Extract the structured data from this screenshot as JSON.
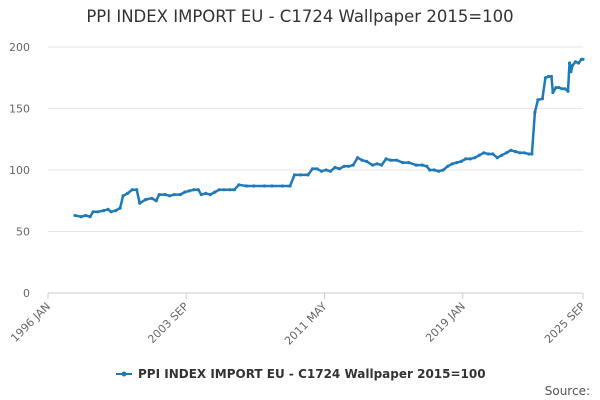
{
  "chart_data": {
    "type": "line",
    "title": "PPI INDEX IMPORT EU - C1724 Wallpaper 2015=100",
    "xlabel": "",
    "ylabel": "",
    "ylim": [
      0,
      200
    ],
    "y_ticks": [
      0,
      50,
      100,
      150,
      200
    ],
    "x_range": [
      "1996-01",
      "2025-09"
    ],
    "x_ticks": [
      "1996 JAN",
      "2003 SEP",
      "2011 MAY",
      "2019 JAN",
      "2025 SEP"
    ],
    "grid": "horizontal",
    "legend_position": "bottom-center",
    "color": "#1f7ab8",
    "series": [
      {
        "name": "PPI INDEX IMPORT EU - C1724 Wallpaper 2015=100",
        "points": [
          [
            "1997-07",
            63
          ],
          [
            "1997-11",
            62
          ],
          [
            "1998-02",
            63
          ],
          [
            "1998-05",
            62
          ],
          [
            "1998-07",
            66
          ],
          [
            "1998-10",
            66
          ],
          [
            "1999-02",
            67
          ],
          [
            "1999-05",
            68
          ],
          [
            "1999-07",
            66
          ],
          [
            "1999-10",
            67
          ],
          [
            "2000-01",
            69
          ],
          [
            "2000-03",
            79
          ],
          [
            "2000-06",
            81
          ],
          [
            "2000-09",
            84
          ],
          [
            "2000-12",
            84
          ],
          [
            "2001-02",
            73
          ],
          [
            "2001-06",
            76
          ],
          [
            "2001-10",
            77
          ],
          [
            "2002-01",
            75
          ],
          [
            "2002-03",
            80
          ],
          [
            "2002-07",
            80
          ],
          [
            "2002-10",
            79
          ],
          [
            "2003-01",
            80
          ],
          [
            "2003-05",
            80
          ],
          [
            "2003-08",
            82
          ],
          [
            "2003-11",
            83
          ],
          [
            "2004-02",
            84
          ],
          [
            "2004-05",
            84
          ],
          [
            "2004-07",
            80
          ],
          [
            "2004-10",
            81
          ],
          [
            "2005-01",
            80
          ],
          [
            "2005-04",
            82
          ],
          [
            "2005-07",
            84
          ],
          [
            "2005-10",
            84
          ],
          [
            "2006-02",
            84
          ],
          [
            "2006-05",
            84
          ],
          [
            "2006-08",
            88
          ],
          [
            "2007-01",
            87
          ],
          [
            "2007-06",
            87
          ],
          [
            "2008-01",
            87
          ],
          [
            "2008-06",
            87
          ],
          [
            "2009-01",
            87
          ],
          [
            "2009-06",
            87
          ],
          [
            "2009-09",
            96
          ],
          [
            "2010-01",
            96
          ],
          [
            "2010-06",
            96
          ],
          [
            "2010-09",
            101
          ],
          [
            "2010-12",
            101
          ],
          [
            "2011-03",
            99
          ],
          [
            "2011-06",
            100
          ],
          [
            "2011-09",
            99
          ],
          [
            "2011-12",
            102
          ],
          [
            "2012-03",
            101
          ],
          [
            "2012-06",
            103
          ],
          [
            "2012-09",
            103
          ],
          [
            "2012-12",
            104
          ],
          [
            "2013-03",
            110
          ],
          [
            "2013-06",
            108
          ],
          [
            "2013-09",
            107
          ],
          [
            "2014-01",
            104
          ],
          [
            "2014-04",
            105
          ],
          [
            "2014-07",
            104
          ],
          [
            "2014-10",
            109
          ],
          [
            "2015-01",
            108
          ],
          [
            "2015-05",
            108
          ],
          [
            "2015-09",
            106
          ],
          [
            "2016-01",
            106
          ],
          [
            "2016-06",
            104
          ],
          [
            "2016-10",
            104
          ],
          [
            "2017-01",
            103
          ],
          [
            "2017-03",
            100
          ],
          [
            "2017-06",
            100
          ],
          [
            "2017-09",
            99
          ],
          [
            "2017-12",
            100
          ],
          [
            "2018-03",
            103
          ],
          [
            "2018-06",
            105
          ],
          [
            "2018-09",
            106
          ],
          [
            "2018-12",
            107
          ],
          [
            "2019-03",
            109
          ],
          [
            "2019-06",
            109
          ],
          [
            "2019-09",
            110
          ],
          [
            "2019-12",
            112
          ],
          [
            "2020-03",
            114
          ],
          [
            "2020-06",
            113
          ],
          [
            "2020-09",
            113
          ],
          [
            "2020-12",
            110
          ],
          [
            "2021-03",
            112
          ],
          [
            "2021-06",
            114
          ],
          [
            "2021-09",
            116
          ],
          [
            "2021-12",
            115
          ],
          [
            "2022-03",
            114
          ],
          [
            "2022-06",
            114
          ],
          [
            "2022-09",
            113
          ],
          [
            "2022-11",
            113
          ],
          [
            "2023-01",
            147
          ],
          [
            "2023-03",
            157
          ],
          [
            "2023-06",
            158
          ],
          [
            "2023-08",
            175
          ],
          [
            "2023-10",
            176
          ],
          [
            "2023-12",
            176
          ],
          [
            "2024-01",
            163
          ],
          [
            "2024-03",
            167
          ],
          [
            "2024-05",
            167
          ],
          [
            "2024-07",
            166
          ],
          [
            "2024-09",
            166
          ],
          [
            "2024-11",
            164
          ],
          [
            "2024-12",
            187
          ],
          [
            "2025-01",
            180
          ],
          [
            "2025-02",
            185
          ],
          [
            "2025-04",
            188
          ],
          [
            "2025-06",
            187
          ],
          [
            "2025-08",
            190
          ],
          [
            "2025-09",
            190
          ]
        ]
      }
    ]
  },
  "credits": "Source:"
}
